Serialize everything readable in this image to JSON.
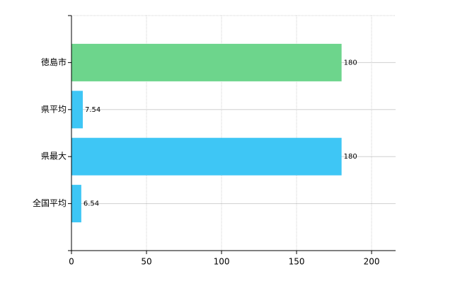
{
  "chart_data": {
    "type": "barh",
    "categories": [
      "徳島市",
      "県平均",
      "県最大",
      "全国平均"
    ],
    "values": [
      180,
      7.54,
      180,
      6.54
    ],
    "colors": [
      "#6dd58c",
      "#3ec6f5",
      "#3ec6f5",
      "#3ec6f5"
    ],
    "xlim": [
      0,
      216
    ],
    "xticks": [
      0,
      50,
      100,
      150,
      200
    ],
    "grid": true
  }
}
